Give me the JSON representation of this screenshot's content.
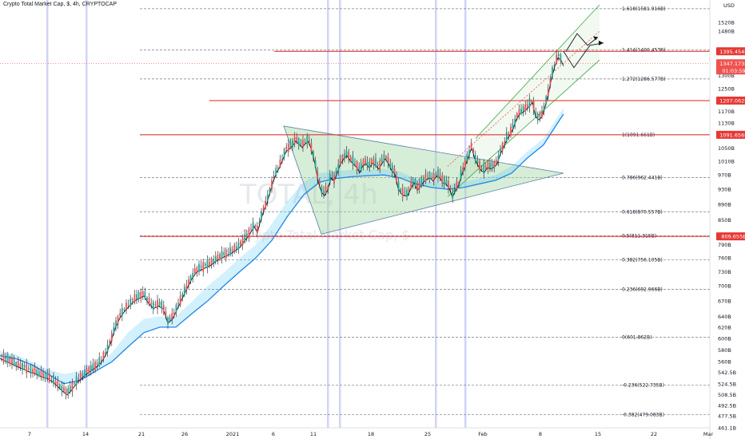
{
  "title": "Crypto Total Market Cap, $, 4h, CRYPTOCAP",
  "currency": "USD",
  "watermark": {
    "big": "TOTAL, 4h",
    "small": "Crypto Total Market Cap, $"
  },
  "colors": {
    "up": "#26a69a",
    "down": "#ef5350",
    "wick": "#131722",
    "hline": "#e53935",
    "fib": "#787b86",
    "ma": "#1e88e5",
    "channel": "#4caf50",
    "triangle": "#a5d6a7",
    "vline": "#c5c8f5"
  },
  "chart_data": {
    "type": "candlestick",
    "title": "Crypto Total Market Cap, $, 4h, CRYPTOCAP",
    "y_axis": {
      "side": "right",
      "unit": "USD",
      "scale": "log",
      "range": [
        461.1,
        1600
      ],
      "tick_labels": [
        "1520B",
        "1480B",
        "1340B",
        "1300B",
        "1250B",
        "1170B",
        "1130B",
        "1050B",
        "1010B",
        "970B",
        "930B",
        "890B",
        "850B",
        "790B",
        "760B",
        "730B",
        "700B",
        "670B",
        "640B",
        "620B",
        "600B",
        "580B",
        "560B",
        "542.5B",
        "524.5B",
        "508.5B",
        "492.5B",
        "477.5B",
        "461.1B"
      ],
      "tick_values": [
        1520,
        1480,
        1340,
        1300,
        1250,
        1170,
        1130,
        1050,
        1010,
        970,
        930,
        890,
        850,
        790,
        760,
        730,
        700,
        670,
        640,
        620,
        600,
        580,
        560,
        542.5,
        524.5,
        508.5,
        492.5,
        477.5,
        461.1
      ]
    },
    "x_axis": {
      "tick_labels": [
        "7",
        "14",
        "21",
        "26",
        "2021",
        "6",
        "11",
        "18",
        "25",
        "Feb",
        "8",
        "15",
        "22",
        "Mar"
      ]
    },
    "fib_levels": [
      {
        "label": "1.618(1581.916B)",
        "value": 1581.916
      },
      {
        "label": "1.414(1400.453B)",
        "value": 1400.453
      },
      {
        "label": "1.272(1286.577B)",
        "value": 1286.577
      },
      {
        "label": "1(1091.661B)",
        "value": 1091.661
      },
      {
        "label": "0.786(962.441B)",
        "value": 962.441
      },
      {
        "label": "0.618(870.557B)",
        "value": 870.557
      },
      {
        "label": "0.5(811.315B)",
        "value": 811.315
      },
      {
        "label": "0.382(756.105B)",
        "value": 756.105
      },
      {
        "label": "0.236(692.966B)",
        "value": 692.966
      },
      {
        "label": "0(601.862B)",
        "value": 601.862
      },
      {
        "label": "-0.236(522.735B)",
        "value": 522.735
      },
      {
        "label": "-0.382(479.083B)",
        "value": 479.083
      }
    ],
    "horizontal_lines": [
      {
        "label": "1395.454B",
        "value": 1395.454
      },
      {
        "label": "1207.062B",
        "value": 1207.062
      },
      {
        "label": "1091.656B",
        "value": 1091.656
      },
      {
        "label": "809.655B",
        "value": 809.655
      }
    ],
    "current_price": {
      "label": "1347.173B",
      "value": 1347.173,
      "countdown": "01:03:59"
    },
    "trend": [
      [
        0,
        570
      ],
      [
        8,
        565
      ],
      [
        16,
        560
      ],
      [
        24,
        555
      ],
      [
        30,
        552
      ],
      [
        36,
        548
      ],
      [
        44,
        545
      ],
      [
        52,
        540
      ],
      [
        60,
        537
      ],
      [
        66,
        532
      ],
      [
        72,
        525
      ],
      [
        78,
        518
      ],
      [
        84,
        512
      ],
      [
        90,
        520
      ],
      [
        96,
        530
      ],
      [
        104,
        540
      ],
      [
        112,
        548
      ],
      [
        120,
        555
      ],
      [
        126,
        562
      ],
      [
        132,
        575
      ],
      [
        138,
        595
      ],
      [
        144,
        622
      ],
      [
        150,
        642
      ],
      [
        156,
        655
      ],
      [
        162,
        665
      ],
      [
        168,
        675
      ],
      [
        174,
        680
      ],
      [
        180,
        685
      ],
      [
        186,
        670
      ],
      [
        192,
        660
      ],
      [
        198,
        665
      ],
      [
        204,
        660
      ],
      [
        210,
        632
      ],
      [
        216,
        640
      ],
      [
        222,
        660
      ],
      [
        228,
        680
      ],
      [
        234,
        700
      ],
      [
        240,
        720
      ],
      [
        246,
        735
      ],
      [
        252,
        740
      ],
      [
        258,
        745
      ],
      [
        264,
        750
      ],
      [
        270,
        758
      ],
      [
        276,
        765
      ],
      [
        282,
        770
      ],
      [
        288,
        775
      ],
      [
        294,
        782
      ],
      [
        300,
        790
      ],
      [
        306,
        805
      ],
      [
        312,
        820
      ],
      [
        318,
        840
      ],
      [
        322,
        825
      ],
      [
        326,
        855
      ],
      [
        330,
        880
      ],
      [
        334,
        900
      ],
      [
        338,
        930
      ],
      [
        342,
        960
      ],
      [
        346,
        985
      ],
      [
        350,
        1000
      ],
      [
        354,
        1025
      ],
      [
        358,
        1048
      ],
      [
        362,
        1055
      ],
      [
        366,
        1065
      ],
      [
        370,
        1080
      ],
      [
        374,
        1070
      ],
      [
        378,
        1060
      ],
      [
        382,
        1072
      ],
      [
        386,
        1078
      ],
      [
        390,
        1050
      ],
      [
        394,
        1010
      ],
      [
        398,
        960
      ],
      [
        402,
        930
      ],
      [
        406,
        920
      ],
      [
        410,
        935
      ],
      [
        414,
        970
      ],
      [
        418,
        960
      ],
      [
        422,
        985
      ],
      [
        426,
        1010
      ],
      [
        430,
        1025
      ],
      [
        434,
        1035
      ],
      [
        438,
        1020
      ],
      [
        442,
        1010
      ],
      [
        446,
        1000
      ],
      [
        450,
        985
      ],
      [
        454,
        1005
      ],
      [
        458,
        1010
      ],
      [
        462,
        998
      ],
      [
        466,
        1012
      ],
      [
        470,
        1005
      ],
      [
        474,
        995
      ],
      [
        478,
        1012
      ],
      [
        482,
        1025
      ],
      [
        486,
        1010
      ],
      [
        490,
        990
      ],
      [
        494,
        980
      ],
      [
        498,
        940
      ],
      [
        502,
        925
      ],
      [
        506,
        920
      ],
      [
        510,
        920
      ],
      [
        514,
        940
      ],
      [
        518,
        955
      ],
      [
        522,
        935
      ],
      [
        526,
        945
      ],
      [
        530,
        958
      ],
      [
        534,
        965
      ],
      [
        538,
        970
      ],
      [
        542,
        960
      ],
      [
        546,
        975
      ],
      [
        550,
        970
      ],
      [
        554,
        955
      ],
      [
        558,
        952
      ],
      [
        562,
        940
      ],
      [
        566,
        915
      ],
      [
        570,
        935
      ],
      [
        574,
        950
      ],
      [
        578,
        980
      ],
      [
        582,
        1005
      ],
      [
        586,
        1030
      ],
      [
        590,
        1060
      ],
      [
        594,
        1025
      ],
      [
        598,
        1005
      ],
      [
        602,
        990
      ],
      [
        606,
        985
      ],
      [
        610,
        1000
      ],
      [
        614,
        995
      ],
      [
        618,
        1000
      ],
      [
        622,
        1010
      ],
      [
        626,
        1040
      ],
      [
        630,
        1060
      ],
      [
        634,
        1085
      ],
      [
        638,
        1100
      ],
      [
        642,
        1120
      ],
      [
        646,
        1150
      ],
      [
        650,
        1170
      ],
      [
        654,
        1175
      ],
      [
        658,
        1185
      ],
      [
        662,
        1195
      ],
      [
        666,
        1210
      ],
      [
        670,
        1160
      ],
      [
        674,
        1150
      ],
      [
        678,
        1160
      ],
      [
        682,
        1195
      ],
      [
        686,
        1240
      ],
      [
        690,
        1300
      ],
      [
        694,
        1345
      ],
      [
        698,
        1380
      ],
      [
        702,
        1370
      ],
      [
        705,
        1347
      ]
    ],
    "ma": [
      [
        0,
        578
      ],
      [
        20,
        572
      ],
      [
        40,
        560
      ],
      [
        60,
        548
      ],
      [
        80,
        540
      ],
      [
        100,
        545
      ],
      [
        120,
        555
      ],
      [
        140,
        575
      ],
      [
        160,
        610
      ],
      [
        180,
        635
      ],
      [
        200,
        640
      ],
      [
        220,
        640
      ],
      [
        240,
        668
      ],
      [
        260,
        700
      ],
      [
        280,
        728
      ],
      [
        300,
        760
      ],
      [
        320,
        790
      ],
      [
        340,
        840
      ],
      [
        360,
        900
      ],
      [
        380,
        950
      ],
      [
        400,
        975
      ],
      [
        420,
        980
      ],
      [
        440,
        985
      ],
      [
        460,
        985
      ],
      [
        480,
        988
      ],
      [
        500,
        980
      ],
      [
        520,
        960
      ],
      [
        540,
        950
      ],
      [
        560,
        945
      ],
      [
        580,
        950
      ],
      [
        600,
        960
      ],
      [
        620,
        970
      ],
      [
        640,
        995
      ],
      [
        660,
        1040
      ],
      [
        680,
        1080
      ],
      [
        700,
        1160
      ],
      [
        705,
        1180
      ]
    ],
    "ma_lower": [
      [
        0,
        570
      ],
      [
        20,
        565
      ],
      [
        40,
        555
      ],
      [
        60,
        540
      ],
      [
        80,
        525
      ],
      [
        100,
        530
      ],
      [
        120,
        545
      ],
      [
        140,
        560
      ],
      [
        160,
        585
      ],
      [
        180,
        610
      ],
      [
        200,
        620
      ],
      [
        220,
        620
      ],
      [
        240,
        645
      ],
      [
        260,
        670
      ],
      [
        280,
        700
      ],
      [
        300,
        730
      ],
      [
        320,
        760
      ],
      [
        340,
        800
      ],
      [
        360,
        860
      ],
      [
        380,
        915
      ],
      [
        400,
        950
      ],
      [
        420,
        960
      ],
      [
        440,
        965
      ],
      [
        460,
        968
      ],
      [
        480,
        970
      ],
      [
        500,
        962
      ],
      [
        520,
        945
      ],
      [
        540,
        935
      ],
      [
        560,
        930
      ],
      [
        580,
        935
      ],
      [
        600,
        945
      ],
      [
        620,
        955
      ],
      [
        640,
        975
      ],
      [
        660,
        1020
      ],
      [
        680,
        1060
      ],
      [
        700,
        1140
      ],
      [
        705,
        1160
      ]
    ],
    "triangle": [
      [
        355,
        1120
      ],
      [
        705,
        975
      ],
      [
        402,
        815
      ]
    ],
    "channel": {
      "upper": [
        [
          595,
          1080
        ],
        [
          750,
          1600
        ]
      ],
      "lower": [
        [
          560,
          910
        ],
        [
          750,
          1360
        ]
      ]
    },
    "projection": [
      [
        708,
        1395
      ],
      [
        722,
        1470
      ],
      [
        735,
        1420
      ],
      [
        748,
        1455
      ]
    ],
    "projection2": [
      [
        705,
        1395
      ],
      [
        718,
        1330
      ],
      [
        738,
        1420
      ],
      [
        755,
        1430
      ]
    ]
  }
}
